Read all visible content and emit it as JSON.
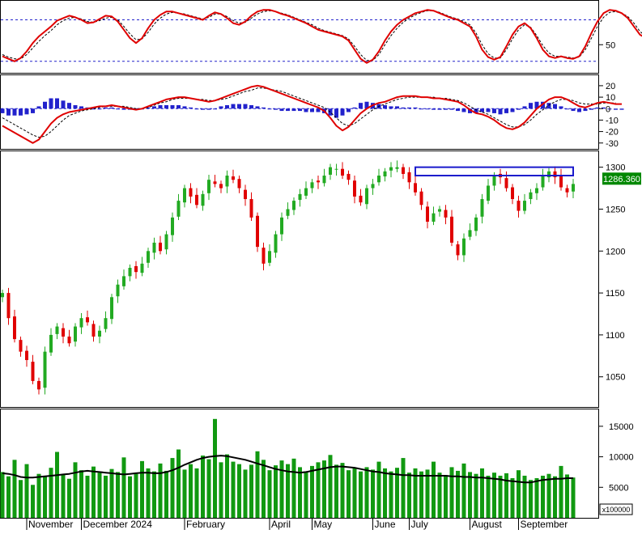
{
  "colors": {
    "up": "#22aa22",
    "down": "#e00000",
    "volume": "#119911",
    "volume_ma": "#000000",
    "rsi_line": "#e00000",
    "rsi_signal": "#000000",
    "macd_line": "#e00000",
    "macd_signal": "#000000",
    "macd_hist": "#2222cc",
    "zone_box": "#1a1acc",
    "last_price_bg": "#008800",
    "last_price_text": "#ffffff",
    "guide": "#2222cc",
    "panel_border": "#000000"
  },
  "chart_data": [
    {
      "type": "line",
      "panel": "rsi",
      "y_ticks": [
        50
      ],
      "ylim": [
        20,
        100
      ],
      "guides": [
        80,
        30
      ],
      "series": [
        {
          "role": "rsi",
          "values": [
            36,
            33,
            30,
            34,
            42,
            52,
            60,
            66,
            72,
            79,
            82,
            85,
            83,
            80,
            76,
            77,
            81,
            85,
            84,
            78,
            68,
            58,
            52,
            58,
            70,
            80,
            86,
            90,
            90,
            88,
            86,
            84,
            82,
            80,
            85,
            89,
            87,
            82,
            76,
            74,
            78,
            85,
            90,
            92,
            92,
            90,
            87,
            85,
            82,
            79,
            76,
            72,
            68,
            66,
            64,
            62,
            60,
            55,
            44,
            33,
            28,
            32,
            42,
            55,
            66,
            74,
            80,
            84,
            88,
            90,
            92,
            91,
            88,
            85,
            82,
            80,
            76,
            72,
            60,
            44,
            35,
            32,
            35,
            48,
            62,
            72,
            76,
            70,
            58,
            44,
            36,
            34,
            36,
            34,
            33,
            36,
            48,
            64,
            78,
            88,
            92,
            91,
            88,
            82,
            72,
            62,
            58,
            62,
            70,
            80,
            84,
            80,
            74,
            68
          ]
        },
        {
          "role": "signal",
          "values": [
            38,
            35,
            33,
            33,
            38,
            46,
            54,
            61,
            67,
            74,
            79,
            82,
            83,
            81,
            78,
            77,
            79,
            82,
            83,
            80,
            72,
            63,
            56,
            57,
            65,
            75,
            82,
            87,
            89,
            88,
            87,
            85,
            83,
            81,
            83,
            87,
            87,
            84,
            79,
            76,
            77,
            82,
            87,
            90,
            91,
            90,
            88,
            86,
            83,
            80,
            77,
            74,
            70,
            67,
            65,
            63,
            61,
            57,
            48,
            38,
            31,
            31,
            38,
            50,
            61,
            70,
            77,
            82,
            86,
            89,
            91,
            91,
            89,
            86,
            83,
            81,
            78,
            74,
            64,
            50,
            39,
            34,
            34,
            44,
            57,
            68,
            74,
            71,
            61,
            49,
            40,
            36,
            36,
            35,
            34,
            35,
            44,
            58,
            72,
            83,
            89,
            90,
            88,
            84,
            76,
            66,
            60,
            61,
            67,
            76,
            81,
            80,
            76,
            71
          ]
        }
      ]
    },
    {
      "type": "line",
      "panel": "macd",
      "y_ticks": [
        20,
        10,
        0,
        -10,
        -20,
        -30
      ],
      "ylim": [
        -33,
        27
      ],
      "series": [
        {
          "role": "macd",
          "values": [
            -15,
            -18,
            -21,
            -24,
            -27,
            -30,
            -27,
            -20,
            -13,
            -8,
            -5,
            -3,
            -2,
            -1,
            0,
            1,
            2,
            2,
            3,
            2,
            1,
            0,
            -1,
            0,
            2,
            4,
            6,
            8,
            9,
            10,
            10,
            9,
            8,
            7,
            6,
            7,
            9,
            11,
            13,
            15,
            17,
            19,
            20,
            19,
            17,
            15,
            13,
            11,
            9,
            7,
            5,
            3,
            1,
            -2,
            -8,
            -15,
            -19,
            -16,
            -10,
            -4,
            0,
            3,
            5,
            6,
            8,
            10,
            11,
            11,
            11,
            10,
            10,
            9,
            9,
            8,
            7,
            6,
            3,
            -1,
            -4,
            -5,
            -7,
            -10,
            -14,
            -17,
            -18,
            -16,
            -12,
            -6,
            0,
            4,
            8,
            10,
            10,
            8,
            5,
            2,
            1,
            3,
            5,
            6,
            5,
            4,
            4
          ]
        },
        {
          "role": "signal",
          "values": [
            -8,
            -11,
            -14,
            -17,
            -20,
            -23,
            -25,
            -24,
            -20,
            -15,
            -10,
            -6,
            -4,
            -2,
            -1,
            0,
            1,
            2,
            2,
            2,
            2,
            1,
            0,
            0,
            1,
            3,
            5,
            6,
            8,
            9,
            9,
            9,
            8,
            8,
            7,
            7,
            8,
            9,
            11,
            13,
            15,
            16,
            18,
            18,
            17,
            16,
            15,
            13,
            11,
            9,
            7,
            5,
            3,
            1,
            -3,
            -8,
            -13,
            -15,
            -13,
            -9,
            -5,
            -1,
            2,
            4,
            6,
            8,
            9,
            10,
            10,
            10,
            10,
            10,
            9,
            9,
            8,
            7,
            5,
            2,
            -1,
            -3,
            -5,
            -8,
            -11,
            -14,
            -16,
            -16,
            -14,
            -10,
            -5,
            -1,
            3,
            6,
            8,
            8,
            7,
            5,
            4,
            4,
            4,
            5,
            5,
            5
          ]
        },
        {
          "role": "histogram",
          "values": [
            -4,
            -6,
            -6,
            -6,
            -5,
            -4,
            2,
            6,
            9,
            9,
            7,
            5,
            3,
            2,
            1,
            0,
            0,
            1,
            1,
            0,
            -1,
            -1,
            -1,
            0,
            1,
            2,
            3,
            3,
            3,
            3,
            2,
            1,
            0,
            -1,
            -1,
            0,
            2,
            3,
            4,
            4,
            4,
            3,
            2,
            1,
            0,
            -1,
            -2,
            -2,
            -2,
            -2,
            -3,
            -3,
            -3,
            -4,
            -6,
            -8,
            -6,
            -3,
            1,
            5,
            6,
            5,
            4,
            3,
            2,
            2,
            1,
            1,
            1,
            0,
            0,
            -1,
            -1,
            -1,
            -1,
            -2,
            -3,
            -4,
            -4,
            -3,
            -3,
            -4,
            -5,
            -4,
            -3,
            -1,
            2,
            5,
            6,
            6,
            5,
            4,
            2,
            0,
            -2,
            -3,
            -2,
            -1,
            1,
            1,
            0,
            -1,
            -1
          ]
        }
      ]
    },
    {
      "type": "candlestick",
      "panel": "price",
      "y_ticks": [
        1300,
        1250,
        1200,
        1150,
        1100,
        1050
      ],
      "ylim": [
        1015,
        1318
      ],
      "last_price": "1286.360",
      "zone": {
        "y_low": 1290,
        "y_high": 1300,
        "x_start": 68,
        "x_end": 94
      },
      "x_tick_labels": [
        "November",
        "December 2024",
        "February",
        "April",
        "May",
        "June",
        "July",
        "August",
        "September"
      ],
      "x_tick_index": [
        4,
        13,
        30,
        44,
        51,
        61,
        67,
        77,
        85
      ],
      "closes": [
        1150,
        1120,
        1095,
        1080,
        1070,
        1045,
        1035,
        1080,
        1100,
        1110,
        1098,
        1090,
        1110,
        1120,
        1115,
        1098,
        1105,
        1120,
        1145,
        1160,
        1170,
        1180,
        1175,
        1185,
        1200,
        1210,
        1200,
        1220,
        1240,
        1260,
        1275,
        1265,
        1255,
        1268,
        1285,
        1280,
        1275,
        1290,
        1285,
        1275,
        1262,
        1240,
        1205,
        1185,
        1200,
        1220,
        1240,
        1250,
        1260,
        1268,
        1275,
        1282,
        1282,
        1290,
        1300,
        1298,
        1290,
        1285,
        1265,
        1258,
        1275,
        1280,
        1290,
        1295,
        1300,
        1300,
        1292,
        1282,
        1270,
        1255,
        1235,
        1245,
        1250,
        1240,
        1210,
        1195,
        1215,
        1225,
        1240,
        1262,
        1278,
        1290,
        1288,
        1275,
        1262,
        1248,
        1260,
        1270,
        1275,
        1290,
        1295,
        1288,
        1276,
        1270,
        1280
      ]
    },
    {
      "type": "bar",
      "panel": "volume",
      "y_ticks": [
        15000,
        10000,
        5000
      ],
      "ylim": [
        0,
        17500
      ],
      "multiplier_label": "x100000",
      "series": [
        {
          "role": "volume",
          "values": [
            7500,
            6800,
            9500,
            6200,
            8800,
            5400,
            7200,
            6900,
            8200,
            10800,
            7100,
            6400,
            9100,
            7800,
            6900,
            8400,
            7400,
            6900,
            8000,
            7500,
            9900,
            6800,
            7200,
            9300,
            8100,
            7600,
            8900,
            7700,
            9800,
            11200,
            7900,
            8800,
            8100,
            10200,
            9600,
            16200,
            9100,
            10400,
            9200,
            8800,
            7900,
            8700,
            10900,
            9500,
            7800,
            8600,
            9400,
            8800,
            9700,
            8300,
            7600,
            8500,
            9100,
            9400,
            10300,
            8700,
            9000,
            7800,
            8100,
            7600,
            8300,
            7900,
            9200,
            8100,
            7600,
            8200,
            9800,
            7400,
            8100,
            7600,
            7900,
            9200,
            7400,
            7000,
            8300,
            7700,
            8900,
            7500,
            7200,
            8100,
            6900,
            7400,
            6900,
            7300,
            6500,
            7800,
            6900,
            6200,
            6500,
            6900,
            7200,
            6800,
            8500,
            7100,
            6600
          ]
        },
        {
          "role": "ma",
          "values": [
            7300,
            7200,
            7000,
            6700,
            6600,
            6600,
            6700,
            6800,
            6900,
            7000,
            7100,
            7200,
            7400,
            7600,
            7700,
            7600,
            7500,
            7400,
            7300,
            7200,
            7100,
            7200,
            7300,
            7400,
            7400,
            7300,
            7300,
            7500,
            7800,
            8200,
            8700,
            9100,
            9500,
            9800,
            10000,
            10100,
            10200,
            10100,
            9900,
            9700,
            9500,
            9200,
            8900,
            8600,
            8300,
            8000,
            7800,
            7600,
            7500,
            7400,
            7500,
            7700,
            7900,
            8100,
            8300,
            8400,
            8400,
            8300,
            8200,
            8000,
            7800,
            7600,
            7500,
            7300,
            7200,
            7100,
            7000,
            7000,
            6900,
            6900,
            6900,
            6900,
            6900,
            6900,
            6800,
            6800,
            6700,
            6700,
            6600,
            6600,
            6500,
            6400,
            6300,
            6100,
            6000,
            5900,
            5800,
            5800,
            6000,
            6200,
            6300,
            6400,
            6400,
            6500,
            6500
          ]
        }
      ]
    }
  ]
}
